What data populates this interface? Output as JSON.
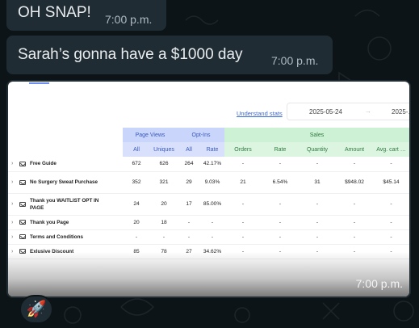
{
  "messages": [
    {
      "text": "OH SNAP!",
      "time": "7:00 p.m."
    },
    {
      "text": "Sarah’s gonna have a $1000 day",
      "time": "7:00 p.m."
    }
  ],
  "image_message": {
    "time": "7:00 p.m.",
    "screenshot": {
      "link": "Understand stats",
      "date_from": "2025-05-24",
      "date_arrow": "→",
      "date_to": "2025-…",
      "groups": {
        "page_views": "Page Views",
        "opt_ins": "Opt-Ins",
        "sales": "Sales"
      },
      "columns": [
        "All",
        "Uniques",
        "All",
        "Rate",
        "Orders",
        "Rate",
        "Quantity",
        "Amount",
        "Avg. cart …"
      ],
      "rows": [
        {
          "name": "Free Guide",
          "cells": [
            "672",
            "626",
            "264",
            "42.17%",
            "-",
            "-",
            "-",
            "-",
            "-"
          ]
        },
        {
          "name": "No Surgery Sweat Purchase",
          "cells": [
            "352",
            "321",
            "29",
            "9.03%",
            "21",
            "6.54%",
            "31",
            "$948.02",
            "$45.14"
          ]
        },
        {
          "name": "Thank you WAITLIST OPT IN PAGE",
          "cells": [
            "24",
            "20",
            "17",
            "85.00%",
            "-",
            "-",
            "-",
            "-",
            "-"
          ]
        },
        {
          "name": "Thank you Page",
          "cells": [
            "20",
            "18",
            "-",
            "-",
            "-",
            "-",
            "-",
            "-",
            "-"
          ]
        },
        {
          "name": "Terms and Conditions",
          "cells": [
            "-",
            "-",
            "-",
            "-",
            "-",
            "-",
            "-",
            "-",
            "-"
          ]
        },
        {
          "name": "Exlusive Discount",
          "cells": [
            "85",
            "78",
            "27",
            "34.62%",
            "-",
            "-",
            "-",
            "-",
            "-"
          ]
        }
      ]
    }
  },
  "reaction": {
    "emoji": "🚀",
    "icon": "rocket-icon"
  }
}
